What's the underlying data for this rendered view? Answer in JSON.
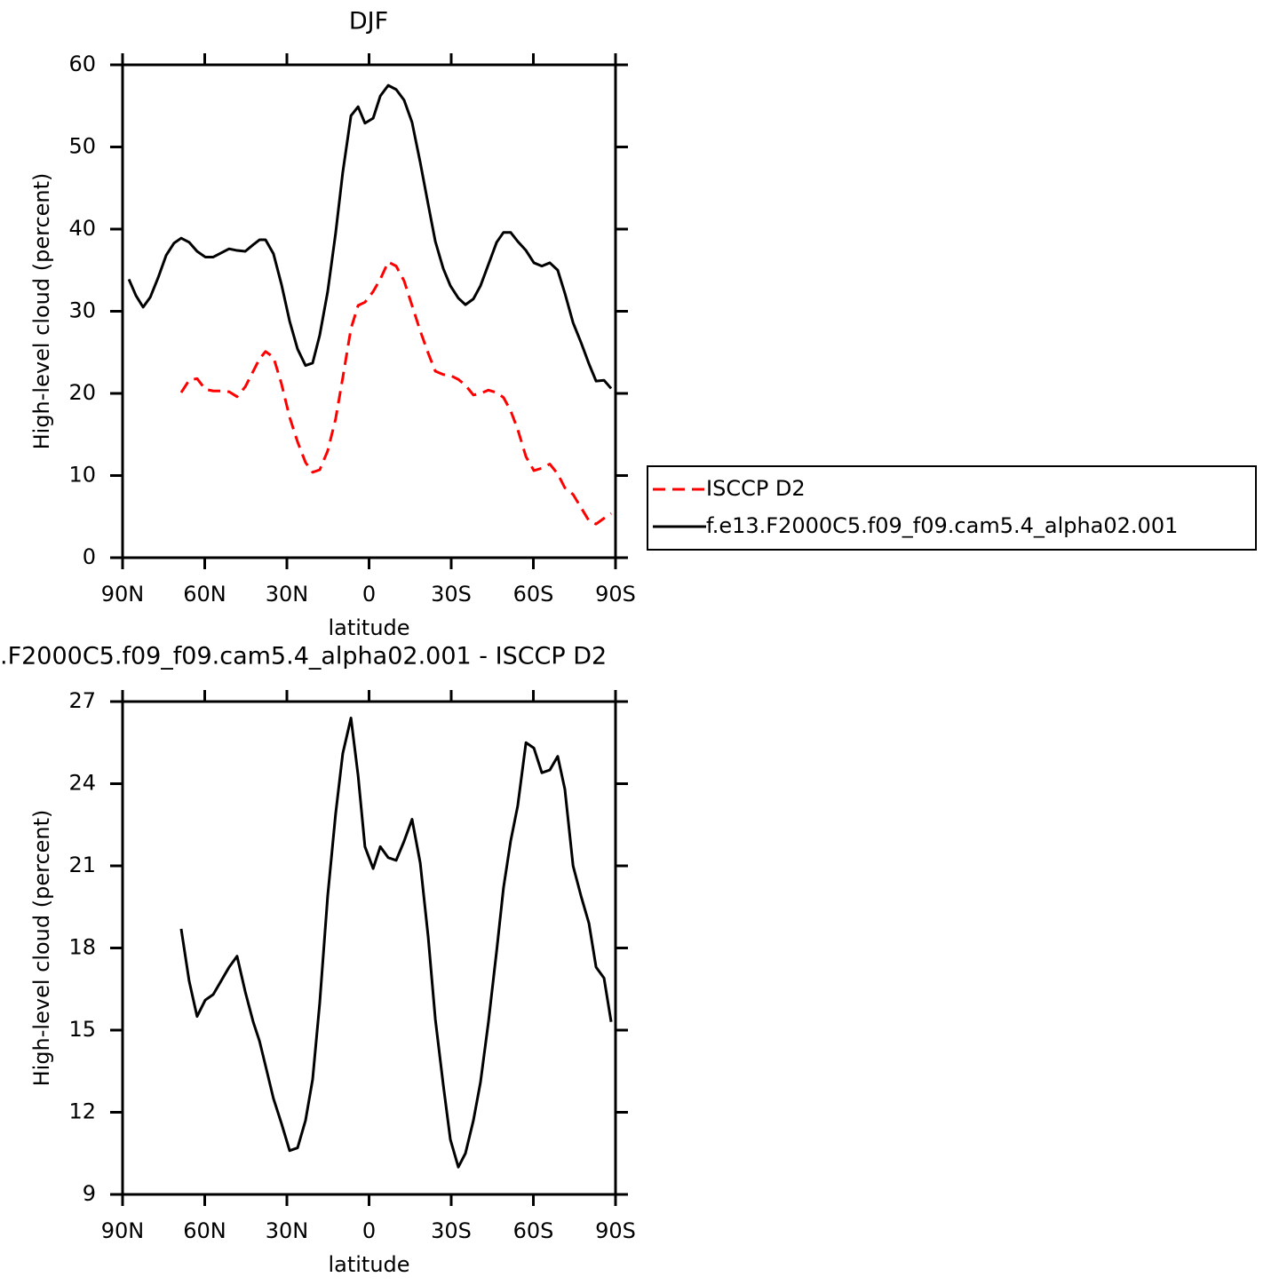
{
  "chart_data": [
    {
      "type": "line",
      "title": "DJF",
      "xlabel": "latitude",
      "ylabel": "High-level cloud (percent)",
      "x": [
        87.7,
        85.1,
        82.5,
        79.9,
        77.0,
        74.1,
        71.2,
        68.6,
        65.7,
        62.8,
        59.8,
        56.9,
        54.0,
        51.1,
        48.2,
        45.2,
        42.3,
        40.0,
        37.8,
        34.9,
        32.0,
        29.0,
        26.1,
        23.2,
        20.6,
        18.0,
        15.1,
        12.2,
        9.6,
        6.6,
        4.0,
        1.5,
        -1.5,
        -4.1,
        -7.0,
        -9.9,
        -12.8,
        -15.7,
        -18.7,
        -21.6,
        -24.2,
        -27.1,
        -29.7,
        -32.6,
        -35.2,
        -38.1,
        -40.7,
        -43.6,
        -46.6,
        -49.1,
        -51.7,
        -54.3,
        -57.3,
        -60.2,
        -63.1,
        -66.0,
        -68.9,
        -71.5,
        -74.5,
        -77.4,
        -80.3,
        -82.9,
        -85.8,
        -88.4
      ],
      "series": [
        {
          "name": "ISCCP D2",
          "color": "#ff0000",
          "linestyle": "dashed",
          "values": [
            null,
            null,
            null,
            null,
            null,
            null,
            null,
            20.1,
            21.6,
            21.8,
            20.5,
            20.3,
            20.3,
            20.2,
            19.6,
            20.8,
            22.7,
            24.2,
            25.1,
            24.4,
            21.2,
            17.1,
            14.1,
            11.6,
            10.4,
            10.7,
            13.0,
            16.9,
            21.9,
            27.9,
            30.7,
            31.1,
            32.4,
            33.9,
            36.0,
            35.5,
            33.7,
            30.7,
            27.6,
            24.9,
            22.7,
            22.3,
            22.2,
            21.7,
            21.0,
            19.8,
            20.0,
            20.4,
            20.1,
            19.5,
            17.9,
            15.6,
            12.3,
            10.6,
            10.9,
            11.4,
            10.2,
            8.5,
            7.7,
            6.1,
            4.5,
            4.1,
            4.8,
            5.4
          ]
        },
        {
          "name": "f.e13.F2000C5.f09_f09.cam5.4_alpha02.001",
          "color": "#000000",
          "linestyle": "solid",
          "values": [
            33.9,
            31.9,
            30.5,
            31.7,
            34.1,
            36.8,
            38.3,
            38.9,
            38.4,
            37.3,
            36.6,
            36.6,
            37.1,
            37.6,
            37.4,
            37.3,
            38.1,
            38.7,
            38.7,
            37.0,
            33.3,
            28.8,
            25.4,
            23.4,
            23.7,
            27.1,
            32.4,
            39.5,
            46.9,
            53.8,
            54.9,
            52.9,
            53.5,
            56.2,
            57.5,
            57.0,
            55.7,
            53.0,
            48.1,
            43.0,
            38.5,
            35.2,
            33.1,
            31.6,
            30.8,
            31.5,
            33.1,
            35.7,
            38.4,
            39.6,
            39.6,
            38.5,
            37.4,
            35.9,
            35.5,
            35.9,
            35.0,
            32.2,
            28.6,
            26.2,
            23.6,
            21.5,
            21.6,
            20.6
          ]
        }
      ],
      "xlim": [
        90,
        -90
      ],
      "xticks": [
        {
          "value": 90,
          "label": "90N"
        },
        {
          "value": 60,
          "label": "60N"
        },
        {
          "value": 30,
          "label": "30N"
        },
        0,
        {
          "value": -30,
          "label": "30S"
        },
        {
          "value": -60,
          "label": "60S"
        },
        {
          "value": -90,
          "label": "90S"
        }
      ],
      "ylim": [
        0,
        60
      ],
      "yticks": [
        0,
        10,
        20,
        30,
        40,
        50,
        60
      ],
      "legend": "right"
    },
    {
      "type": "line",
      "title": ".F2000C5.f09_f09.cam5.4_alpha02.001 - ISCCP D2",
      "xlabel": "latitude",
      "ylabel": "High-level cloud (percent)",
      "x": [
        68.6,
        65.7,
        62.8,
        59.8,
        56.9,
        54.0,
        51.1,
        48.2,
        45.2,
        42.3,
        40.0,
        37.8,
        34.9,
        32.0,
        29.0,
        26.1,
        23.2,
        20.6,
        18.0,
        15.1,
        12.2,
        9.6,
        6.6,
        4.0,
        1.5,
        -1.5,
        -4.1,
        -7.0,
        -9.9,
        -12.8,
        -15.7,
        -18.7,
        -21.6,
        -24.2,
        -27.1,
        -29.7,
        -32.6,
        -35.2,
        -38.1,
        -40.7,
        -43.6,
        -46.6,
        -49.1,
        -51.7,
        -54.3,
        -57.3,
        -60.2,
        -63.1,
        -66.0,
        -68.9,
        -71.5,
        -74.5,
        -77.4,
        -80.3,
        -82.9,
        -85.8,
        -88.4
      ],
      "series": [
        {
          "color": "#000000",
          "linestyle": "solid",
          "values": [
            18.7,
            16.8,
            15.5,
            16.1,
            16.3,
            16.8,
            17.3,
            17.7,
            16.4,
            15.3,
            14.6,
            13.7,
            12.5,
            11.6,
            10.6,
            10.7,
            11.7,
            13.2,
            16.0,
            19.9,
            22.9,
            25.1,
            26.4,
            24.3,
            21.7,
            20.9,
            21.7,
            21.3,
            21.2,
            21.9,
            22.7,
            21.1,
            18.4,
            15.4,
            13.0,
            11.0,
            10.0,
            10.5,
            11.7,
            13.1,
            15.3,
            17.9,
            20.2,
            21.9,
            23.2,
            25.5,
            25.3,
            24.4,
            24.5,
            25.0,
            23.8,
            21.0,
            19.9,
            18.9,
            17.3,
            16.9,
            15.3
          ]
        }
      ],
      "xlim": [
        90,
        -90
      ],
      "xticks": [
        {
          "value": 90,
          "label": "90N"
        },
        {
          "value": 60,
          "label": "60N"
        },
        {
          "value": 30,
          "label": "30N"
        },
        0,
        {
          "value": -30,
          "label": "30S"
        },
        {
          "value": -60,
          "label": "60S"
        },
        {
          "value": -90,
          "label": "90S"
        }
      ],
      "ylim": [
        9,
        27
      ],
      "yticks": [
        9,
        12,
        15,
        18,
        21,
        24,
        27
      ]
    }
  ]
}
